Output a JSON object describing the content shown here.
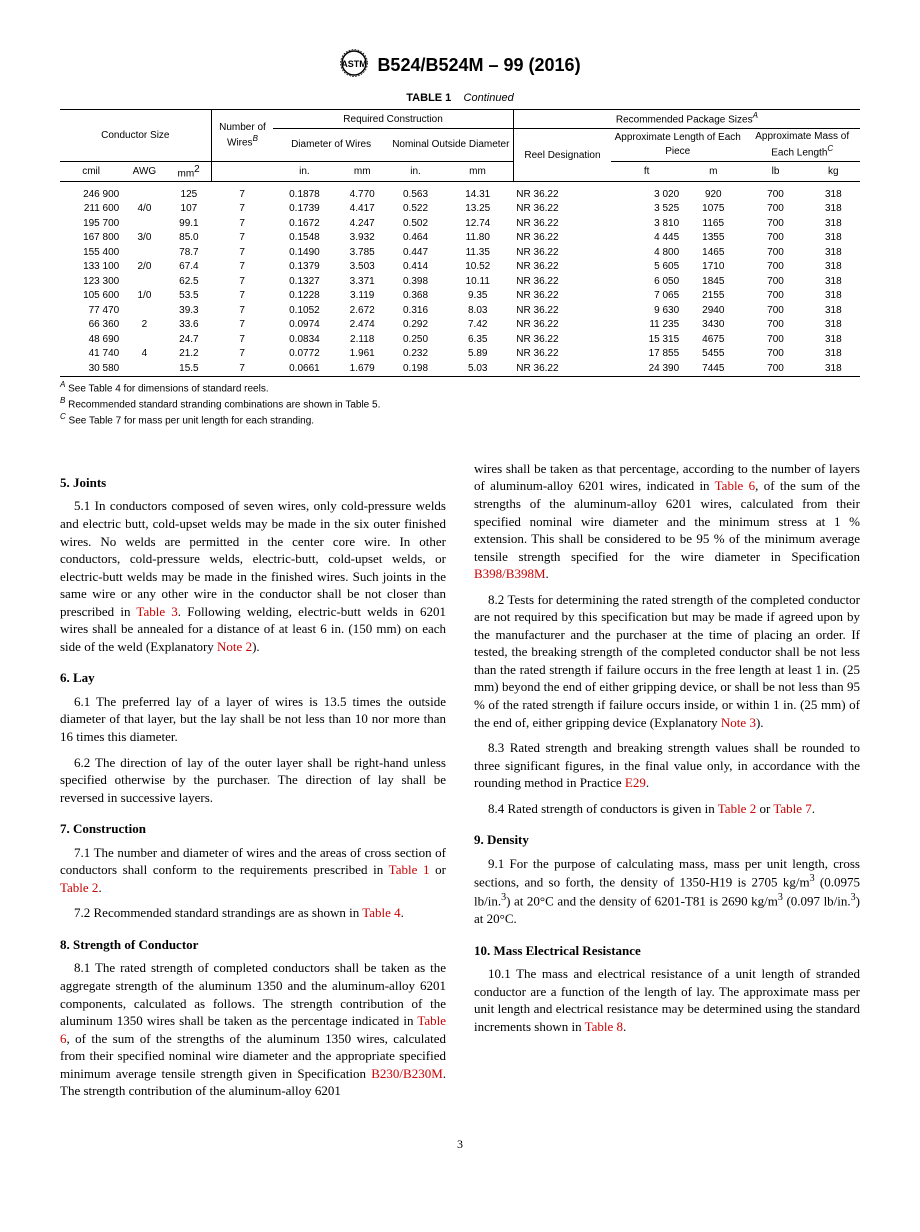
{
  "header": {
    "designation": "B524/B524M – 99 (2016)"
  },
  "table": {
    "caption_label": "TABLE 1",
    "caption_state": "Continued",
    "group_required": "Required Construction",
    "group_recommended": "Recommended Package Sizes",
    "sup_A": "A",
    "sup_B": "B",
    "sup_C": "C",
    "h_conductor_size": "Conductor Size",
    "h_num_wires": "Number of Wires",
    "h_diameter": "Diameter of Wires",
    "h_nominal": "Nominal Outside Diameter",
    "h_reel": "Reel Designation",
    "h_approx_length": "Approximate Length of Each Piece",
    "h_approx_mass": "Approximate Mass of Each Length",
    "u_cmil": "cmil",
    "u_awg": "AWG",
    "u_mm2": "mm",
    "u_mm2_sup": "2",
    "u_in": "in.",
    "u_mm": "mm",
    "u_ft": "ft",
    "u_m": "m",
    "u_lb": "lb",
    "u_kg": "kg",
    "rows": [
      {
        "cmil": "246 900",
        "awg": "",
        "mm2": "125",
        "nw": "7",
        "din": "0.1878",
        "dmm": "4.770",
        "nin": "0.563",
        "nmm": "14.31",
        "reel": "NR 36.22",
        "ft": "3 020",
        "m": "920",
        "lb": "700",
        "kg": "318"
      },
      {
        "cmil": "211 600",
        "awg": "4/0",
        "mm2": "107",
        "nw": "7",
        "din": "0.1739",
        "dmm": "4.417",
        "nin": "0.522",
        "nmm": "13.25",
        "reel": "NR 36.22",
        "ft": "3 525",
        "m": "1075",
        "lb": "700",
        "kg": "318"
      },
      {
        "cmil": "195 700",
        "awg": "",
        "mm2": "99.1",
        "nw": "7",
        "din": "0.1672",
        "dmm": "4.247",
        "nin": "0.502",
        "nmm": "12.74",
        "reel": "NR 36.22",
        "ft": "3 810",
        "m": "1165",
        "lb": "700",
        "kg": "318"
      },
      {
        "cmil": "167 800",
        "awg": "3/0",
        "mm2": "85.0",
        "nw": "7",
        "din": "0.1548",
        "dmm": "3.932",
        "nin": "0.464",
        "nmm": "11.80",
        "reel": "NR 36.22",
        "ft": "4 445",
        "m": "1355",
        "lb": "700",
        "kg": "318"
      },
      {
        "cmil": "155 400",
        "awg": "",
        "mm2": "78.7",
        "nw": "7",
        "din": "0.1490",
        "dmm": "3.785",
        "nin": "0.447",
        "nmm": "11.35",
        "reel": "NR 36.22",
        "ft": "4 800",
        "m": "1465",
        "lb": "700",
        "kg": "318"
      },
      {
        "cmil": "133 100",
        "awg": "2/0",
        "mm2": "67.4",
        "nw": "7",
        "din": "0.1379",
        "dmm": "3.503",
        "nin": "0.414",
        "nmm": "10.52",
        "reel": "NR 36.22",
        "ft": "5 605",
        "m": "1710",
        "lb": "700",
        "kg": "318"
      },
      {
        "cmil": "123 300",
        "awg": "",
        "mm2": "62.5",
        "nw": "7",
        "din": "0.1327",
        "dmm": "3.371",
        "nin": "0.398",
        "nmm": "10.11",
        "reel": "NR 36.22",
        "ft": "6 050",
        "m": "1845",
        "lb": "700",
        "kg": "318"
      },
      {
        "cmil": "105 600",
        "awg": "1/0",
        "mm2": "53.5",
        "nw": "7",
        "din": "0.1228",
        "dmm": "3.119",
        "nin": "0.368",
        "nmm": "9.35",
        "reel": "NR 36.22",
        "ft": "7 065",
        "m": "2155",
        "lb": "700",
        "kg": "318"
      },
      {
        "cmil": "77 470",
        "awg": "",
        "mm2": "39.3",
        "nw": "7",
        "din": "0.1052",
        "dmm": "2.672",
        "nin": "0.316",
        "nmm": "8.03",
        "reel": "NR 36.22",
        "ft": "9 630",
        "m": "2940",
        "lb": "700",
        "kg": "318"
      },
      {
        "cmil": "66 360",
        "awg": "2",
        "mm2": "33.6",
        "nw": "7",
        "din": "0.0974",
        "dmm": "2.474",
        "nin": "0.292",
        "nmm": "7.42",
        "reel": "NR 36.22",
        "ft": "11 235",
        "m": "3430",
        "lb": "700",
        "kg": "318"
      },
      {
        "cmil": "48 690",
        "awg": "",
        "mm2": "24.7",
        "nw": "7",
        "din": "0.0834",
        "dmm": "2.118",
        "nin": "0.250",
        "nmm": "6.35",
        "reel": "NR 36.22",
        "ft": "15 315",
        "m": "4675",
        "lb": "700",
        "kg": "318"
      },
      {
        "cmil": "41 740",
        "awg": "4",
        "mm2": "21.2",
        "nw": "7",
        "din": "0.0772",
        "dmm": "1.961",
        "nin": "0.232",
        "nmm": "5.89",
        "reel": "NR 36.22",
        "ft": "17 855",
        "m": "5455",
        "lb": "700",
        "kg": "318"
      },
      {
        "cmil": "30 580",
        "awg": "",
        "mm2": "15.5",
        "nw": "7",
        "din": "0.0661",
        "dmm": "1.679",
        "nin": "0.198",
        "nmm": "5.03",
        "reel": "NR 36.22",
        "ft": "24 390",
        "m": "7445",
        "lb": "700",
        "kg": "318"
      }
    ]
  },
  "footnotes": {
    "a": " See Table 4 for dimensions of standard reels.",
    "b": " Recommended standard stranding combinations are shown in Table 5.",
    "c": " See Table 7 for mass per unit length for each stranding."
  },
  "sections": {
    "s5_head": "5. Joints",
    "s5_1a": "5.1 In conductors composed of seven wires, only cold-pressure welds and electric butt, cold-upset welds may be made in the six outer finished wires. No welds are permitted in the center core wire. In other conductors, cold-pressure welds, electric-butt, cold-upset welds, or electric-butt welds may be made in the finished wires. Such joints in the same wire or any other wire in the conductor shall be not closer than prescribed in ",
    "s5_1_ref1": "Table 3",
    "s5_1b": ". Following welding, electric-butt welds in 6201 wires shall be annealed for a distance of at least 6 in. (150 mm) on each side of the weld (Explanatory ",
    "s5_1_ref2": "Note 2",
    "s5_1c": ").",
    "s6_head": "6. Lay",
    "s6_1": "6.1 The preferred lay of a layer of wires is 13.5 times the outside diameter of that layer, but the lay shall be not less than 10 nor more than 16 times this diameter.",
    "s6_2": "6.2 The direction of lay of the outer layer shall be right-hand unless specified otherwise by the purchaser. The direction of lay shall be reversed in successive layers.",
    "s7_head": "7. Construction",
    "s7_1a": "7.1 The number and diameter of wires and the areas of cross section of conductors shall conform to the requirements prescribed in ",
    "s7_1_ref1": "Table 1",
    "s7_1_or": " or ",
    "s7_1_ref2": "Table 2",
    "s7_1b": ".",
    "s7_2a": "7.2 Recommended standard strandings are as shown in ",
    "s7_2_ref": "Table 4",
    "s7_2b": ".",
    "s8_head": "8. Strength of Conductor",
    "s8_1a": "8.1 The rated strength of completed conductors shall be taken as the aggregate strength of the aluminum 1350 and the aluminum-alloy 6201 components, calculated as follows. The strength contribution of the aluminum 1350 wires shall be taken as the percentage indicated in ",
    "s8_1_ref1": "Table 6",
    "s8_1b": ", of the sum of the strengths of the aluminum 1350 wires, calculated from their specified nominal wire diameter and the appropriate specified minimum average tensile strength given in Specification ",
    "s8_1_ref2": "B230/B230M",
    "s8_1c": ". The strength contribution of the aluminum-alloy 6201",
    "s8_1d_a": "wires shall be taken as that percentage, according to the number of layers of aluminum-alloy 6201 wires, indicated in ",
    "s8_1d_ref1": "Table 6",
    "s8_1d_b": ", of the sum of the strengths of the aluminum-alloy 6201 wires, calculated from their specified nominal wire diameter and the minimum stress at 1 % extension. This shall be considered to be 95 % of the minimum average tensile strength specified for the wire diameter in Specification ",
    "s8_1d_ref2": "B398/B398M",
    "s8_1d_c": ".",
    "s8_2a": "8.2 Tests for determining the rated strength of the completed conductor are not required by this specification but may be made if agreed upon by the manufacturer and the purchaser at the time of placing an order. If tested, the breaking strength of the completed conductor shall be not less than the rated strength if failure occurs in the free length at least 1 in. (25 mm) beyond the end of either gripping device, or shall be not less than 95 % of the rated strength if failure occurs inside, or within 1 in. (25 mm) of the end of, either gripping device (Explanatory ",
    "s8_2_ref": "Note 3",
    "s8_2b": ").",
    "s8_3a": "8.3 Rated strength and breaking strength values shall be rounded to three significant figures, in the final value only, in accordance with the rounding method in Practice ",
    "s8_3_ref": "E29",
    "s8_3b": ".",
    "s8_4a": "8.4 Rated strength of conductors is given in ",
    "s8_4_ref1": "Table 2",
    "s8_4_or": " or ",
    "s8_4_ref2": "Table 7",
    "s8_4b": ".",
    "s9_head": "9. Density",
    "s9_1a": "9.1 For the purpose of calculating mass, mass per unit length, cross sections, and so forth, the density of 1350-H19 is 2705 kg/m",
    "s9_1b": " (0.0975 lb/in.",
    "s9_1c": ") at 20°C and the density of 6201-T81 is 2690 kg/m",
    "s9_1d": " (0.097 lb/in.",
    "s9_1e": ") at 20°C.",
    "s10_head": "10. Mass Electrical Resistance",
    "s10_1a": "10.1 The mass and electrical resistance of a unit length of stranded conductor are a function of the length of lay. The approximate mass per unit length and electrical resistance may be determined using the standard increments shown in ",
    "s10_1_ref": "Table 8",
    "s10_1b": "."
  },
  "page_number": "3"
}
